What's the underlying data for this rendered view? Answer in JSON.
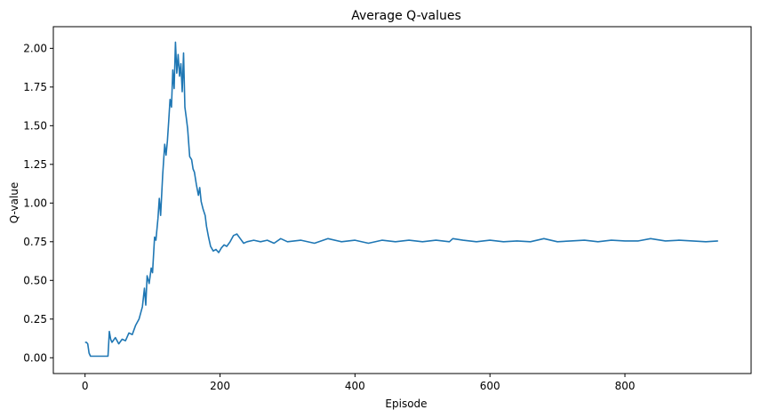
{
  "chart_data": {
    "type": "line",
    "title": "Average Q-values",
    "xlabel": "Episode",
    "ylabel": "Q-value",
    "xlim": [
      -47,
      987
    ],
    "ylim": [
      -0.102,
      2.14
    ],
    "xticks": [
      0,
      200,
      400,
      600,
      800
    ],
    "yticks": [
      0.0,
      0.25,
      0.5,
      0.75,
      1.0,
      1.25,
      1.5,
      1.75,
      2.0
    ],
    "ytick_labels": [
      "0.00",
      "0.25",
      "0.50",
      "0.75",
      "1.00",
      "1.25",
      "1.50",
      "1.75",
      "2.00"
    ],
    "grid": false,
    "series": [
      {
        "color": "#1f77b4",
        "x": [
          0,
          2,
          4,
          6,
          8,
          10,
          15,
          20,
          25,
          30,
          34,
          36,
          38,
          40,
          45,
          50,
          55,
          60,
          65,
          70,
          75,
          80,
          85,
          88,
          90,
          92,
          95,
          98,
          100,
          103,
          105,
          108,
          110,
          112,
          115,
          118,
          120,
          122,
          124,
          126,
          128,
          130,
          132,
          134,
          136,
          138,
          140,
          142,
          144,
          146,
          148,
          150,
          152,
          155,
          158,
          160,
          162,
          165,
          168,
          170,
          172,
          175,
          178,
          180,
          183,
          186,
          190,
          194,
          198,
          202,
          206,
          210,
          215,
          220,
          225,
          230,
          235,
          240,
          250,
          260,
          270,
          280,
          290,
          300,
          320,
          340,
          360,
          380,
          400,
          420,
          440,
          460,
          480,
          500,
          520,
          540,
          545,
          560,
          580,
          600,
          620,
          640,
          660,
          680,
          700,
          720,
          740,
          760,
          780,
          800,
          820,
          838,
          860,
          880,
          900,
          920,
          938
        ],
        "y": [
          0.1,
          0.1,
          0.09,
          0.03,
          0.01,
          0.01,
          0.01,
          0.01,
          0.01,
          0.01,
          0.01,
          0.17,
          0.12,
          0.1,
          0.13,
          0.09,
          0.12,
          0.11,
          0.16,
          0.15,
          0.21,
          0.25,
          0.33,
          0.45,
          0.34,
          0.53,
          0.48,
          0.58,
          0.55,
          0.78,
          0.76,
          0.9,
          1.03,
          0.92,
          1.18,
          1.38,
          1.31,
          1.4,
          1.53,
          1.67,
          1.62,
          1.86,
          1.74,
          2.04,
          1.84,
          1.96,
          1.82,
          1.9,
          1.72,
          1.97,
          1.62,
          1.55,
          1.48,
          1.3,
          1.28,
          1.22,
          1.2,
          1.12,
          1.05,
          1.1,
          1.01,
          0.96,
          0.92,
          0.85,
          0.78,
          0.72,
          0.69,
          0.7,
          0.68,
          0.71,
          0.73,
          0.72,
          0.75,
          0.79,
          0.8,
          0.77,
          0.74,
          0.75,
          0.76,
          0.75,
          0.76,
          0.74,
          0.77,
          0.75,
          0.76,
          0.74,
          0.77,
          0.75,
          0.76,
          0.74,
          0.76,
          0.75,
          0.76,
          0.75,
          0.76,
          0.75,
          0.77,
          0.76,
          0.75,
          0.76,
          0.75,
          0.755,
          0.75,
          0.77,
          0.75,
          0.755,
          0.76,
          0.75,
          0.76,
          0.755,
          0.755,
          0.77,
          0.755,
          0.76,
          0.755,
          0.75,
          0.755
        ]
      }
    ]
  }
}
